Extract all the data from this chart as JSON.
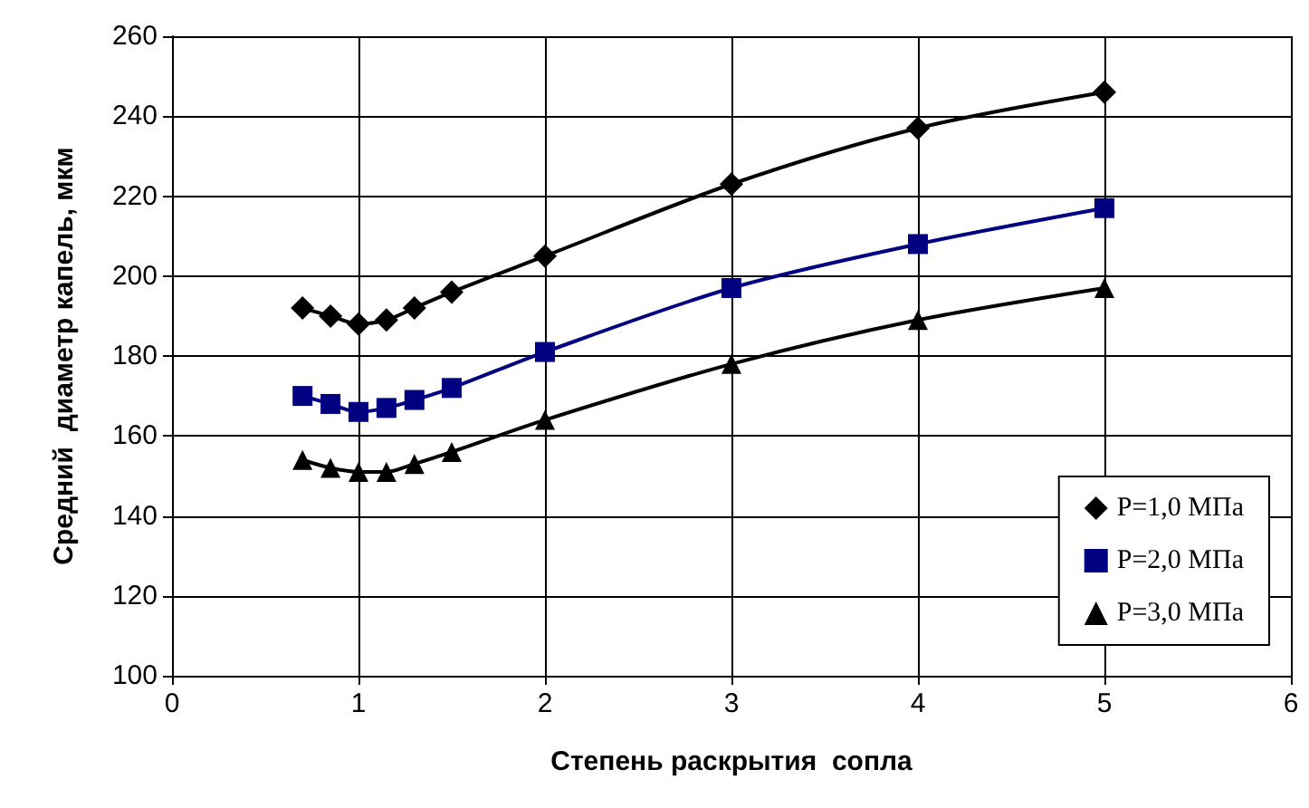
{
  "chart_data": {
    "type": "line",
    "xlabel": "Степень раскрытия  сопла",
    "ylabel": "Средний  диаметр капель, мкм",
    "x": [
      0.7,
      0.85,
      1.0,
      1.15,
      1.3,
      1.5,
      2,
      3,
      4,
      5
    ],
    "series": [
      {
        "name": "P=1,0 МПа",
        "color": "#000000",
        "marker": "diamond",
        "values": [
          192,
          190,
          188,
          189,
          192,
          196,
          205,
          223,
          237,
          246
        ]
      },
      {
        "name": "P=2,0 МПа",
        "color": "#000080",
        "marker": "square",
        "values": [
          170,
          168,
          166,
          167,
          169,
          172,
          181,
          197,
          208,
          217
        ]
      },
      {
        "name": "P=3,0 МПа",
        "color": "#000000",
        "marker": "triangle",
        "values": [
          154,
          152,
          151,
          151,
          153,
          156,
          164,
          178,
          189,
          197
        ]
      }
    ],
    "xlim": [
      0,
      6
    ],
    "xticks": [
      0,
      1,
      2,
      3,
      4,
      5,
      6
    ],
    "ylim": [
      100,
      260
    ],
    "yticks": [
      100,
      120,
      140,
      160,
      180,
      200,
      220,
      240,
      260
    ],
    "grid": true,
    "legend": "bottom right",
    "line_style": "solid"
  }
}
